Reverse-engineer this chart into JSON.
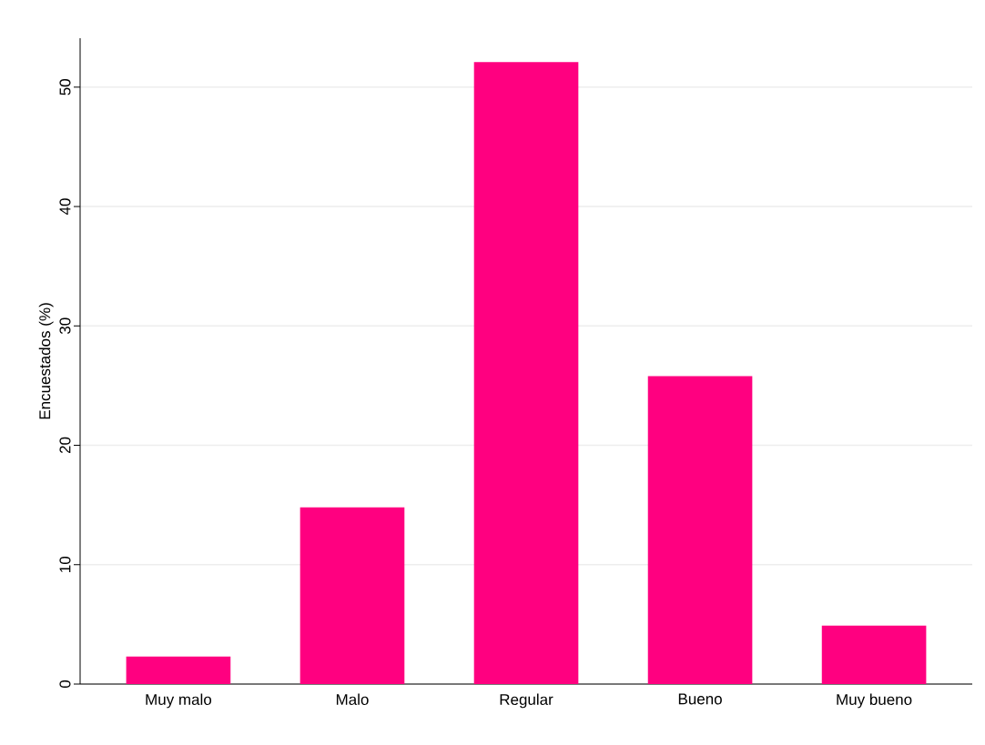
{
  "chart_data": {
    "type": "bar",
    "ylabel": "Encuestados (%)",
    "categories": [
      "Muy malo",
      "Malo",
      "Regular",
      "Bueno",
      "Muy bueno"
    ],
    "values": [
      2.3,
      14.8,
      52.1,
      25.8,
      4.9
    ],
    "color": "#ff0080",
    "ylim": [
      0,
      54.1
    ],
    "yticks": [
      0,
      10,
      20,
      30,
      40,
      50
    ],
    "grid": "y"
  }
}
